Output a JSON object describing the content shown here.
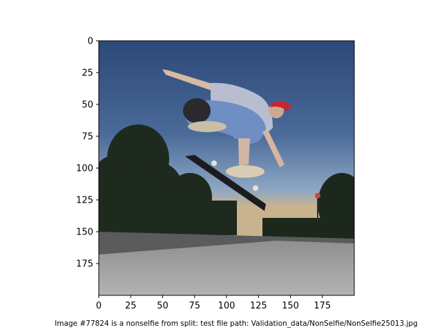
{
  "figure": {
    "caption": "Image #77824 is a nonselfie from split: test file path: Validation_data/NonSelfie/NonSelfie25013.jpg"
  },
  "axes": {
    "x_ticks": [
      "0",
      "25",
      "50",
      "75",
      "100",
      "125",
      "150",
      "175"
    ],
    "y_ticks": [
      "0",
      "25",
      "50",
      "75",
      "100",
      "125",
      "150",
      "175"
    ],
    "x_range": [
      0,
      200
    ],
    "y_range": [
      0,
      200
    ]
  },
  "image": {
    "subject": "skateboarder mid-air kickflip",
    "colors": {
      "sky_top": "#2f4d7c",
      "sky_bottom": "#8aa6c4",
      "horizon_glow": "#d8b98a",
      "trees": "#1f2b1f",
      "concrete": "#a8a8a6",
      "concrete_shadow": "#595a5c",
      "helmet": "#c8262c",
      "shirt": "#b9bfd0",
      "jeans": "#6f8fc4",
      "skateboard": "#1c1c1e"
    }
  }
}
